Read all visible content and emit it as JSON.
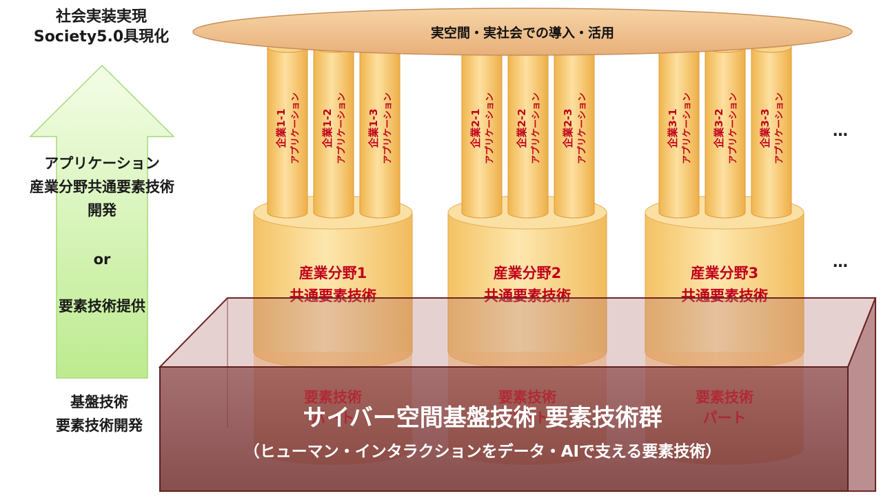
{
  "left_panel": {
    "top_label": [
      "社会実装実現",
      "Society5.0具現化"
    ],
    "application_label": [
      "アプリケーション",
      "産業分野共通要素技術",
      "開発"
    ],
    "or_label": "or",
    "provide_label": "要素技術提供",
    "bottom_label": [
      "基盤技術",
      "要素技術開発"
    ]
  },
  "top_disc": {
    "label": "実空間・実社会での導入・活用"
  },
  "industries": [
    {
      "label": [
        "産業分野1",
        "共通要素技術"
      ],
      "part_label": [
        "要素技術",
        "パート"
      ],
      "pillars": [
        {
          "label": [
            "企業1-1",
            "アプリケーション"
          ]
        },
        {
          "label": [
            "企業1-2",
            "アプリケーション"
          ]
        },
        {
          "label": [
            "企業1-3",
            "アプリケーション"
          ]
        }
      ]
    },
    {
      "label": [
        "産業分野2",
        "共通要素技術"
      ],
      "part_label": [
        "要素技術",
        "パート"
      ],
      "pillars": [
        {
          "label": [
            "企業2-1",
            "アプリケーション"
          ]
        },
        {
          "label": [
            "企業2-2",
            "アプリケーション"
          ]
        },
        {
          "label": [
            "企業2-3",
            "アプリケーション"
          ]
        }
      ]
    },
    {
      "label": [
        "産業分野3",
        "共通要素技術"
      ],
      "part_label": [
        "要素技術",
        "パート"
      ],
      "pillars": [
        {
          "label": [
            "企業3-1",
            "アプリケーション"
          ]
        },
        {
          "label": [
            "企業3-2",
            "アプリケーション"
          ]
        },
        {
          "label": [
            "企業3-3",
            "アプリケーション"
          ]
        }
      ]
    }
  ],
  "ellipsis": [
    "…",
    "…"
  ],
  "base_box": {
    "title": "サイバー空間基盤技術 要素技術群",
    "subtitle": "（ヒューマン・インタラクションをデータ・AIで支える要素技術）"
  },
  "colors": {
    "arrow_fill": "#d9f5b8",
    "cylinder": "#fbd98a",
    "pillar": "#f7c870",
    "red_text": "#c0001a",
    "box": "#7a2b2b"
  }
}
